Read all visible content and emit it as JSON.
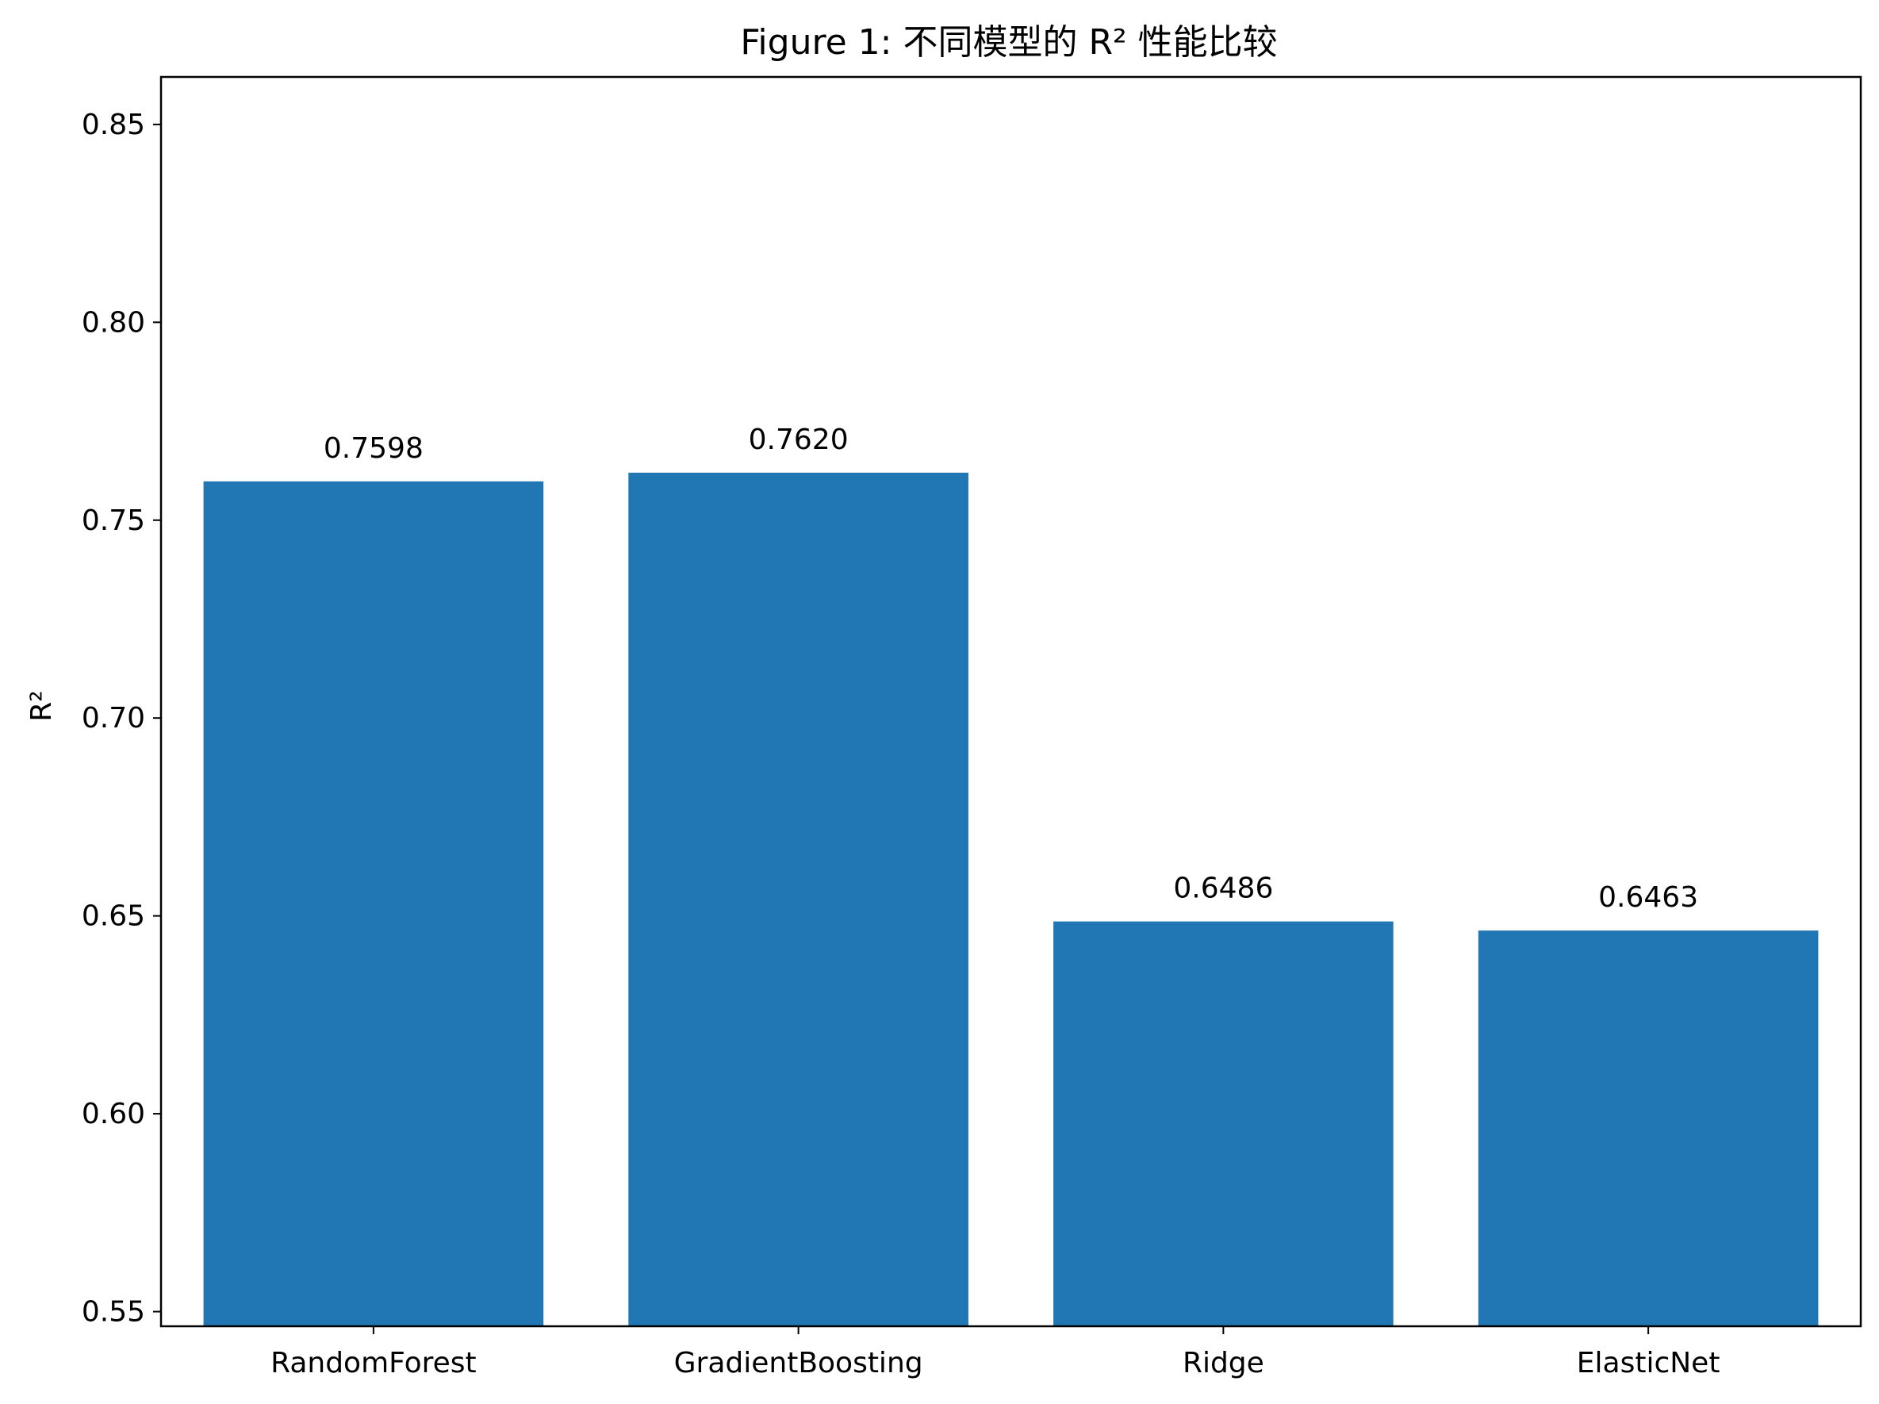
{
  "chart_data": {
    "type": "bar",
    "title": "Figure 1: 不同模型的 R² 性能比较",
    "xlabel": "",
    "ylabel": "R²",
    "categories": [
      "RandomForest",
      "GradientBoosting",
      "Ridge",
      "ElasticNet"
    ],
    "values": [
      0.7598,
      0.762,
      0.6486,
      0.6463
    ],
    "value_labels": [
      "0.7598",
      "0.7620",
      "0.6486",
      "0.6463"
    ],
    "ylim": [
      0.5463,
      0.862
    ],
    "yticks": [
      0.55,
      0.6,
      0.65,
      0.7,
      0.75,
      0.8,
      0.85
    ],
    "ytick_labels": [
      "0.55",
      "0.60",
      "0.65",
      "0.70",
      "0.75",
      "0.80",
      "0.85"
    ],
    "bar_color": "#2077b4",
    "grid": false,
    "legend": "none"
  }
}
